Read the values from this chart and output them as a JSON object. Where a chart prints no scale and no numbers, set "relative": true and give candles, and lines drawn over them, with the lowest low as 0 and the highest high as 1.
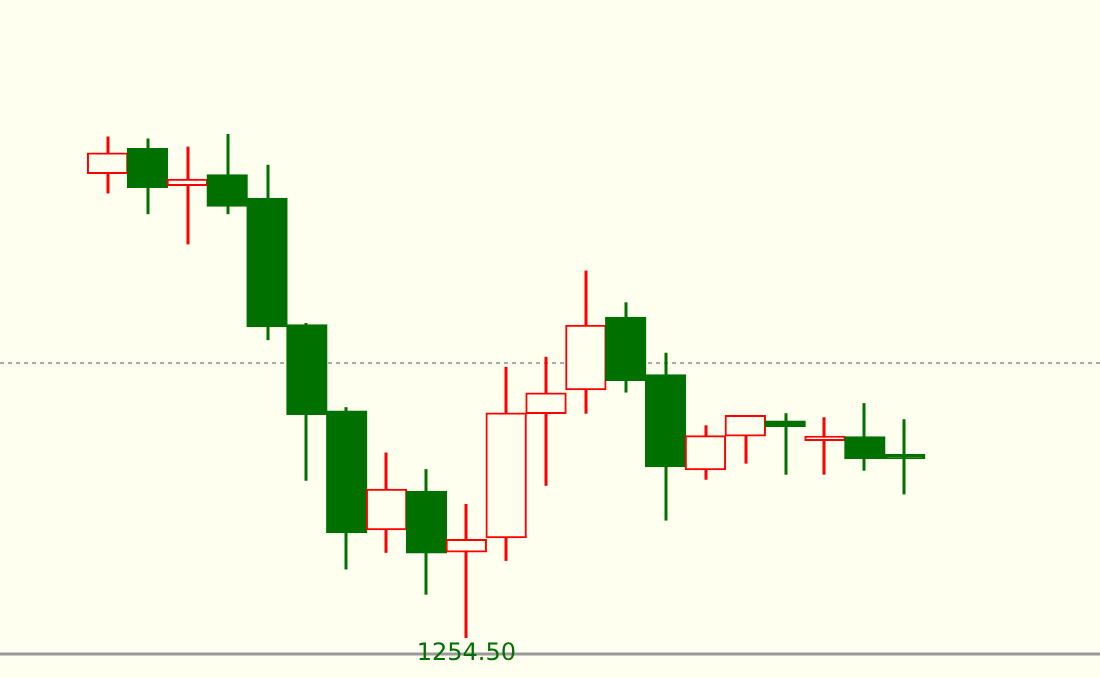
{
  "chart_data": {
    "type": "candlestick",
    "relative": true,
    "categories": [
      null,
      null,
      null,
      null,
      null,
      null,
      null,
      null,
      null,
      null,
      null,
      null,
      null,
      null,
      null,
      null,
      null,
      null,
      null,
      null,
      null
    ],
    "ohlc": [
      [
        0.922,
        0.995,
        0.882,
        0.962
      ],
      [
        0.971,
        0.991,
        0.841,
        0.894
      ],
      [
        0.898,
        0.975,
        0.781,
        0.91
      ],
      [
        0.919,
        1,
        0.841,
        0.857
      ],
      [
        0.872,
        0.939,
        0.591,
        0.618
      ],
      [
        0.621,
        0.625,
        0.312,
        0.444
      ],
      [
        0.45,
        0.458,
        0.136,
        0.209
      ],
      [
        0.215,
        0.368,
        0.169,
        0.295
      ],
      [
        0.291,
        0.335,
        0.086,
        0.169
      ],
      [
        0.171,
        0.266,
        0,
        0.195
      ],
      [
        0.199,
        0.538,
        0.153,
        0.446
      ],
      [
        0.446,
        0.558,
        0.302,
        0.486
      ],
      [
        0.493,
        0.729,
        0.445,
        0.62
      ],
      [
        0.636,
        0.666,
        0.487,
        0.511
      ],
      [
        0.522,
        0.566,
        0.233,
        0.34
      ],
      [
        0.334,
        0.422,
        0.314,
        0.401
      ],
      [
        0.401,
        0.441,
        0.346,
        0.441
      ],
      [
        0.43,
        0.446,
        0.324,
        0.42
      ],
      [
        0.392,
        0.438,
        0.324,
        0.397
      ],
      [
        0.399,
        0.466,
        0.332,
        0.356
      ],
      [
        0.362,
        0.434,
        0.285,
        0.356
      ]
    ],
    "colors": [
      "#ff0000",
      "#007000",
      "#ff0000",
      "#007000",
      "#007000",
      "#007000",
      "#007000",
      "#ff0000",
      "#007000",
      "#ff0000",
      "#ff0000",
      "#ff0000",
      "#ff0000",
      "#007000",
      "#007000",
      "#ff0000",
      "#ff0000",
      "#007000",
      "#ff0000",
      "#007000",
      "#007000"
    ],
    "ref_lines": [
      {
        "axis": "y",
        "value": 0.546,
        "color": "#aaaaaa",
        "line_style": "dotted"
      }
    ],
    "annotations": [
      {
        "text": "1254.50",
        "y": 0
      }
    ]
  }
}
